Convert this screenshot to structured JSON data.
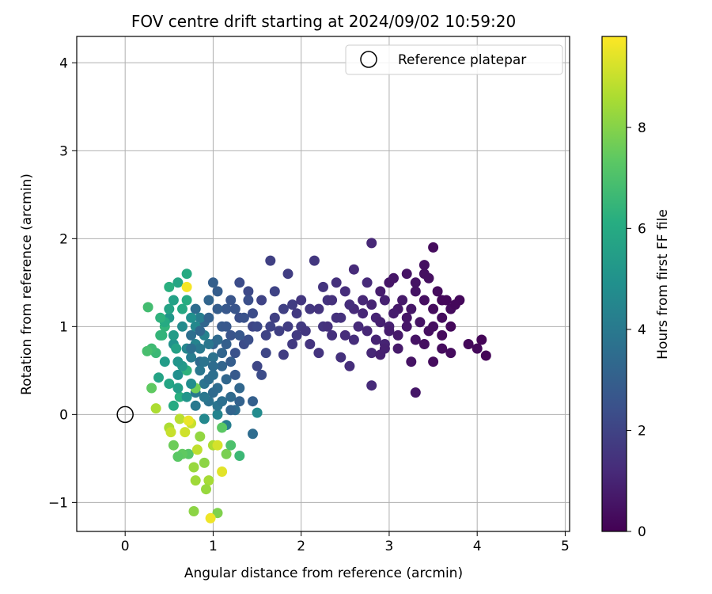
{
  "chart_data": {
    "type": "scatter",
    "title": "FOV centre drift starting at 2024/09/02 10:59:20",
    "xlabel": "Angular distance from reference (arcmin)",
    "ylabel": "Rotation from reference (arcmin)",
    "xlim": [
      -0.55,
      5.05
    ],
    "ylim": [
      -1.33,
      4.3
    ],
    "xticks": [
      0,
      1,
      2,
      3,
      4,
      5
    ],
    "yticks": [
      -1,
      0,
      1,
      2,
      3,
      4
    ],
    "xtick_labels": [
      "0",
      "1",
      "2",
      "3",
      "4",
      "5"
    ],
    "ytick_labels": [
      "−1",
      "0",
      "1",
      "2",
      "3",
      "4"
    ],
    "grid": true,
    "legend": {
      "position": "top-right",
      "entries": [
        "Reference platepar"
      ]
    },
    "reference_point": {
      "x": 0,
      "y": 0,
      "label": "Reference platepar"
    },
    "colorbar": {
      "label": "Hours from first FF file",
      "colormap": "viridis",
      "range": [
        0,
        9.8
      ],
      "ticks": [
        0,
        2,
        4,
        6,
        8
      ],
      "tick_labels": [
        "0",
        "2",
        "4",
        "6",
        "8"
      ]
    },
    "series": [
      {
        "colorscale": "hours",
        "points": [
          [
            3.5,
            1.9,
            0.3
          ],
          [
            3.4,
            1.6,
            0.4
          ],
          [
            3.6,
            1.3,
            0.2
          ],
          [
            3.7,
            1.2,
            0.3
          ],
          [
            3.3,
            1.4,
            0.5
          ],
          [
            3.2,
            1.1,
            0.6
          ],
          [
            3.5,
            1.0,
            0.4
          ],
          [
            3.8,
            1.3,
            0.2
          ],
          [
            3.6,
            0.9,
            0.3
          ],
          [
            3.4,
            0.8,
            0.4
          ],
          [
            3.9,
            0.8,
            0.2
          ],
          [
            4.0,
            0.75,
            0.2
          ],
          [
            4.05,
            0.85,
            0.1
          ],
          [
            4.1,
            0.67,
            0.1
          ],
          [
            3.7,
            0.7,
            0.3
          ],
          [
            3.5,
            0.6,
            0.3
          ],
          [
            3.3,
            0.25,
            0.6
          ],
          [
            3.25,
            0.6,
            0.5
          ],
          [
            3.0,
            1.5,
            0.6
          ],
          [
            3.1,
            1.2,
            0.7
          ],
          [
            2.9,
            1.4,
            0.8
          ],
          [
            3.0,
            1.0,
            0.9
          ],
          [
            2.95,
            0.8,
            1.0
          ],
          [
            2.85,
            1.1,
            1.0
          ],
          [
            2.8,
            1.95,
            1.1
          ],
          [
            2.75,
            1.5,
            1.2
          ],
          [
            2.7,
            1.3,
            1.1
          ],
          [
            2.8,
            0.7,
            1.1
          ],
          [
            2.9,
            0.68,
            0.9
          ],
          [
            2.8,
            0.33,
            1.2
          ],
          [
            2.6,
            1.2,
            1.2
          ],
          [
            2.5,
            1.4,
            1.3
          ],
          [
            2.6,
            0.85,
            1.3
          ],
          [
            2.55,
            0.55,
            1.3
          ],
          [
            2.45,
            1.1,
            1.4
          ],
          [
            2.4,
            1.5,
            1.4
          ],
          [
            2.3,
            1.3,
            1.5
          ],
          [
            2.35,
            0.9,
            1.4
          ],
          [
            2.25,
            1.0,
            1.5
          ],
          [
            2.2,
            0.7,
            1.5
          ],
          [
            2.15,
            1.75,
            1.6
          ],
          [
            2.1,
            1.2,
            1.6
          ],
          [
            2.0,
            1.0,
            1.7
          ],
          [
            1.95,
            0.9,
            1.7
          ],
          [
            1.9,
            1.25,
            1.8
          ],
          [
            1.85,
            1.6,
            1.8
          ],
          [
            1.8,
            0.68,
            1.8
          ],
          [
            1.7,
            1.1,
            1.9
          ],
          [
            1.65,
            1.75,
            1.9
          ],
          [
            1.6,
            0.9,
            2.0
          ],
          [
            1.55,
            1.3,
            2.0
          ],
          [
            1.5,
            0.55,
            2.1
          ],
          [
            1.45,
            1.0,
            2.1
          ],
          [
            1.4,
            1.4,
            2.2
          ],
          [
            1.35,
            0.8,
            2.3
          ],
          [
            1.3,
            1.5,
            2.3
          ],
          [
            1.3,
            1.1,
            2.4
          ],
          [
            1.25,
            0.7,
            2.5
          ],
          [
            1.2,
            1.3,
            2.6
          ],
          [
            1.2,
            0.9,
            2.6
          ],
          [
            1.15,
            1.2,
            2.7
          ],
          [
            1.1,
            1.0,
            2.8
          ],
          [
            1.05,
            1.4,
            2.9
          ],
          [
            1.0,
            1.5,
            3.0
          ],
          [
            1.0,
            0.8,
            3.1
          ],
          [
            0.95,
            1.3,
            3.2
          ],
          [
            0.9,
            1.05,
            3.3
          ],
          [
            0.85,
            0.6,
            3.4
          ],
          [
            0.8,
            1.2,
            3.5
          ],
          [
            0.75,
            0.9,
            3.6
          ],
          [
            1.1,
            0.55,
            3.2
          ],
          [
            1.15,
            0.4,
            3.3
          ],
          [
            1.2,
            0.2,
            3.4
          ],
          [
            1.05,
            0.3,
            3.5
          ],
          [
            1.0,
            0.45,
            3.6
          ],
          [
            0.95,
            0.15,
            3.7
          ],
          [
            0.9,
            0.35,
            3.8
          ],
          [
            0.85,
            0.5,
            3.9
          ],
          [
            0.8,
            0.25,
            4.0
          ],
          [
            0.75,
            0.65,
            4.1
          ],
          [
            1.25,
            0.05,
            3.5
          ],
          [
            1.3,
            0.3,
            3.3
          ],
          [
            1.45,
            0.15,
            3.0
          ],
          [
            1.5,
            0.02,
            4.7
          ],
          [
            1.45,
            -0.22,
            3.5
          ],
          [
            1.15,
            -0.12,
            4.2
          ],
          [
            1.05,
            0.0,
            4.4
          ],
          [
            0.9,
            -0.05,
            4.6
          ],
          [
            0.7,
            0.75,
            4.5
          ],
          [
            0.65,
            1.0,
            4.7
          ],
          [
            0.6,
            0.45,
            4.9
          ],
          [
            0.55,
            0.8,
            5.0
          ],
          [
            0.5,
            1.1,
            5.2
          ],
          [
            0.45,
            0.6,
            5.4
          ],
          [
            0.55,
            1.3,
            5.6
          ],
          [
            0.6,
            1.5,
            5.8
          ],
          [
            0.7,
            1.6,
            6.0
          ],
          [
            0.5,
            1.45,
            6.2
          ],
          [
            0.45,
            1.0,
            6.4
          ],
          [
            0.4,
            0.9,
            6.5
          ],
          [
            0.35,
            0.7,
            6.6
          ],
          [
            0.3,
            0.75,
            6.7
          ],
          [
            0.26,
            1.22,
            6.8
          ],
          [
            0.25,
            0.72,
            6.9
          ],
          [
            0.3,
            0.3,
            7.4
          ],
          [
            0.35,
            0.07,
            8.6
          ],
          [
            0.38,
            0.42,
            5.7
          ],
          [
            0.5,
            0.35,
            5.8
          ],
          [
            0.55,
            0.1,
            6.0
          ],
          [
            0.62,
            0.2,
            6.2
          ],
          [
            0.7,
            0.5,
            6.3
          ],
          [
            0.8,
            0.3,
            7.7
          ],
          [
            0.72,
            -0.45,
            7.2
          ],
          [
            0.65,
            -0.45,
            7.4
          ],
          [
            0.6,
            -0.48,
            7.3
          ],
          [
            0.55,
            -0.35,
            7.6
          ],
          [
            0.5,
            -0.15,
            8.6
          ],
          [
            0.52,
            -0.2,
            9.0
          ],
          [
            0.62,
            -0.05,
            8.8
          ],
          [
            0.68,
            -0.2,
            9.1
          ],
          [
            0.75,
            -0.1,
            9.0
          ],
          [
            0.78,
            -0.6,
            8.3
          ],
          [
            0.82,
            -0.4,
            8.9
          ],
          [
            0.8,
            -0.75,
            8.4
          ],
          [
            0.85,
            -0.25,
            8.2
          ],
          [
            0.9,
            -0.55,
            8.1
          ],
          [
            0.95,
            -0.75,
            8.5
          ],
          [
            0.92,
            -0.85,
            8.3
          ],
          [
            1.0,
            -0.35,
            8.6
          ],
          [
            1.05,
            -0.35,
            9.2
          ],
          [
            1.1,
            -0.65,
            9.4
          ],
          [
            1.15,
            -0.45,
            7.8
          ],
          [
            1.1,
            -0.15,
            7.3
          ],
          [
            1.2,
            -0.35,
            7.0
          ],
          [
            1.3,
            -0.47,
            6.6
          ],
          [
            1.05,
            -1.12,
            7.9
          ],
          [
            0.78,
            -1.1,
            8.1
          ],
          [
            0.97,
            -1.18,
            9.6
          ],
          [
            0.7,
            1.45,
            9.7
          ],
          [
            0.72,
            -0.07,
            9.5
          ],
          [
            0.95,
            0.8,
            3.9
          ],
          [
            1.0,
            0.65,
            3.7
          ],
          [
            1.05,
            0.85,
            3.4
          ],
          [
            1.1,
            0.7,
            3.2
          ],
          [
            0.9,
            0.9,
            4.3
          ],
          [
            0.85,
            1.1,
            4.2
          ],
          [
            0.8,
            0.8,
            4.4
          ],
          [
            0.75,
            0.35,
            4.8
          ],
          [
            0.7,
            0.2,
            5.1
          ],
          [
            0.65,
            0.55,
            5.3
          ],
          [
            0.6,
            0.3,
            5.5
          ],
          [
            0.58,
            0.75,
            5.6
          ],
          [
            0.65,
            1.2,
            5.9
          ],
          [
            0.7,
            1.3,
            6.1
          ],
          [
            0.75,
            1.1,
            4.9
          ],
          [
            0.8,
            1.0,
            4.6
          ],
          [
            0.85,
            0.75,
            4.0
          ],
          [
            0.9,
            0.6,
            3.8
          ],
          [
            0.95,
            0.4,
            3.6
          ],
          [
            1.0,
            0.25,
            3.4
          ],
          [
            1.05,
            0.1,
            3.8
          ],
          [
            1.1,
            0.15,
            3.6
          ],
          [
            1.15,
            0.8,
            3.0
          ],
          [
            1.2,
            0.6,
            2.9
          ],
          [
            1.25,
            0.45,
            2.8
          ],
          [
            1.3,
            0.9,
            2.7
          ],
          [
            1.35,
            1.1,
            2.5
          ],
          [
            1.4,
            0.85,
            2.4
          ],
          [
            1.45,
            1.15,
            2.3
          ],
          [
            1.5,
            1.0,
            2.2
          ],
          [
            1.55,
            0.45,
            2.3
          ],
          [
            1.6,
            0.7,
            2.1
          ],
          [
            1.7,
            1.4,
            2.0
          ],
          [
            1.75,
            0.95,
            1.9
          ],
          [
            1.85,
            1.0,
            1.8
          ],
          [
            1.9,
            0.8,
            1.7
          ],
          [
            2.0,
            1.3,
            1.6
          ],
          [
            2.05,
            0.95,
            1.6
          ],
          [
            2.1,
            0.8,
            1.5
          ],
          [
            2.2,
            1.2,
            1.5
          ],
          [
            2.3,
            1.0,
            1.4
          ],
          [
            2.4,
            1.1,
            1.4
          ],
          [
            2.5,
            0.9,
            1.3
          ],
          [
            2.55,
            1.25,
            1.3
          ],
          [
            2.65,
            1.0,
            1.2
          ],
          [
            2.7,
            1.15,
            1.1
          ],
          [
            2.75,
            0.95,
            1.1
          ],
          [
            2.8,
            1.25,
            1.0
          ],
          [
            2.85,
            0.85,
            1.0
          ],
          [
            2.9,
            1.05,
            0.9
          ],
          [
            2.95,
            1.3,
            0.9
          ],
          [
            3.0,
            0.95,
            0.8
          ],
          [
            3.05,
            1.15,
            0.8
          ],
          [
            3.1,
            0.9,
            0.7
          ],
          [
            3.15,
            1.3,
            0.7
          ],
          [
            3.2,
            1.0,
            0.6
          ],
          [
            3.25,
            1.2,
            0.6
          ],
          [
            3.3,
            1.5,
            0.5
          ],
          [
            3.35,
            1.05,
            0.5
          ],
          [
            3.4,
            1.3,
            0.4
          ],
          [
            3.45,
            0.95,
            0.4
          ],
          [
            3.5,
            1.2,
            0.3
          ],
          [
            3.55,
            1.4,
            0.3
          ],
          [
            3.6,
            1.1,
            0.3
          ],
          [
            3.65,
            1.3,
            0.2
          ],
          [
            3.7,
            1.0,
            0.2
          ],
          [
            3.75,
            1.25,
            0.2
          ],
          [
            3.45,
            1.55,
            0.4
          ],
          [
            3.2,
            1.6,
            0.5
          ],
          [
            3.05,
            1.55,
            0.6
          ],
          [
            3.3,
            0.85,
            0.5
          ],
          [
            3.1,
            0.75,
            0.7
          ],
          [
            2.95,
            0.75,
            0.9
          ],
          [
            3.6,
            0.75,
            0.3
          ],
          [
            3.4,
            1.7,
            0.4
          ],
          [
            2.6,
            1.65,
            1.2
          ],
          [
            2.35,
            1.3,
            1.4
          ],
          [
            2.45,
            0.65,
            1.4
          ],
          [
            2.25,
            1.45,
            1.5
          ],
          [
            1.95,
            1.15,
            1.7
          ],
          [
            1.65,
            1.0,
            2.0
          ],
          [
            1.8,
            1.2,
            1.9
          ],
          [
            1.4,
            1.3,
            2.4
          ],
          [
            1.25,
            1.2,
            2.6
          ],
          [
            1.15,
            1.0,
            2.7
          ],
          [
            1.05,
            1.2,
            2.9
          ],
          [
            0.95,
            1.1,
            3.1
          ],
          [
            0.85,
            0.95,
            3.3
          ],
          [
            0.75,
            0.75,
            3.6
          ],
          [
            1.0,
            0.55,
            3.5
          ],
          [
            0.9,
            0.2,
            3.9
          ],
          [
            0.8,
            0.1,
            4.0
          ],
          [
            1.2,
            0.05,
            3.2
          ],
          [
            1.3,
            0.15,
            3.1
          ],
          [
            0.6,
            0.6,
            5.1
          ],
          [
            0.55,
            0.9,
            5.4
          ],
          [
            0.5,
            1.2,
            5.7
          ],
          [
            0.45,
            1.05,
            6.0
          ],
          [
            0.4,
            1.1,
            6.3
          ],
          [
            0.42,
            0.9,
            6.4
          ]
        ]
      }
    ]
  }
}
